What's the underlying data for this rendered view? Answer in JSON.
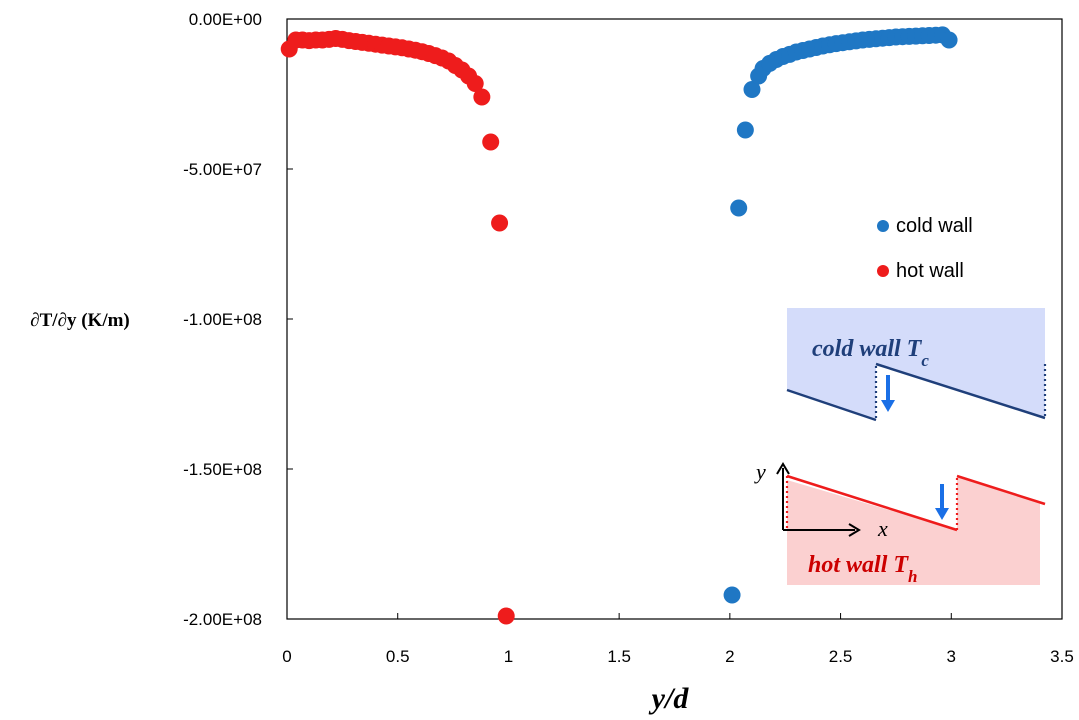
{
  "chart_data": {
    "type": "scatter",
    "xlabel": "y/d",
    "ylabel": "∂T/∂y (K/m)",
    "xlim": [
      0,
      3.5
    ],
    "ylim": [
      -200000000,
      0
    ],
    "x_ticks": [
      0,
      0.5,
      1,
      1.5,
      2,
      2.5,
      3,
      3.5
    ],
    "x_tick_labels": [
      "0",
      "0.5",
      "1",
      "1.5",
      "2",
      "2.5",
      "3",
      "3.5"
    ],
    "y_ticks": [
      0,
      -50000000,
      -100000000,
      -150000000,
      -200000000
    ],
    "y_tick_labels": [
      "0.00E+00",
      "-5.00E+07",
      "-1.00E+08",
      "-1.50E+08",
      "-2.00E+08"
    ],
    "grid": false,
    "legend_position": "right",
    "series": [
      {
        "name": "cold wall",
        "color": "#1f77c4",
        "x": [
          2.01,
          2.04,
          2.07,
          2.1,
          2.13,
          2.15,
          2.18,
          2.21,
          2.24,
          2.27,
          2.3,
          2.33,
          2.36,
          2.39,
          2.42,
          2.45,
          2.48,
          2.51,
          2.54,
          2.57,
          2.6,
          2.63,
          2.66,
          2.69,
          2.72,
          2.75,
          2.78,
          2.81,
          2.84,
          2.87,
          2.9,
          2.93,
          2.96,
          2.99
        ],
        "y": [
          -192000000,
          -63000000,
          -37000000,
          -23500000,
          -19000000,
          -16500000,
          -14800000,
          -13500000,
          -12500000,
          -11800000,
          -11000000,
          -10500000,
          -10000000,
          -9500000,
          -9000000,
          -8600000,
          -8200000,
          -7900000,
          -7600000,
          -7300000,
          -7000000,
          -6800000,
          -6600000,
          -6400000,
          -6200000,
          -6000000,
          -5900000,
          -5800000,
          -5700000,
          -5600000,
          -5500000,
          -5400000,
          -5300000,
          -7000000
        ]
      },
      {
        "name": "hot wall",
        "color": "#ee1c1c",
        "x": [
          0.01,
          0.04,
          0.07,
          0.1,
          0.13,
          0.16,
          0.19,
          0.22,
          0.25,
          0.28,
          0.31,
          0.34,
          0.37,
          0.4,
          0.43,
          0.46,
          0.49,
          0.52,
          0.55,
          0.58,
          0.61,
          0.64,
          0.67,
          0.7,
          0.73,
          0.76,
          0.79,
          0.82,
          0.85,
          0.88,
          0.92,
          0.96,
          0.99
        ],
        "y": [
          -10000000,
          -7000000,
          -7000000,
          -7200000,
          -7000000,
          -7000000,
          -6800000,
          -6500000,
          -6800000,
          -7200000,
          -7500000,
          -7800000,
          -8100000,
          -8400000,
          -8700000,
          -9000000,
          -9300000,
          -9600000,
          -10000000,
          -10400000,
          -10900000,
          -11500000,
          -12200000,
          -13000000,
          -14000000,
          -15500000,
          -17000000,
          -19000000,
          -21500000,
          -26000000,
          -41000000,
          -68000000,
          -199000000
        ]
      }
    ]
  },
  "inset": {
    "cold_label": "cold wall T",
    "cold_sub": "c",
    "hot_label": "hot wall T",
    "hot_sub": "h",
    "axis_y": "y",
    "axis_x": "x",
    "cold_fill": "#d4dcfa",
    "hot_fill": "#fbd0d0",
    "cold_line": "#1f3f7a",
    "hot_line": "#ee1c1c",
    "arrow": "#1a6fe6"
  }
}
